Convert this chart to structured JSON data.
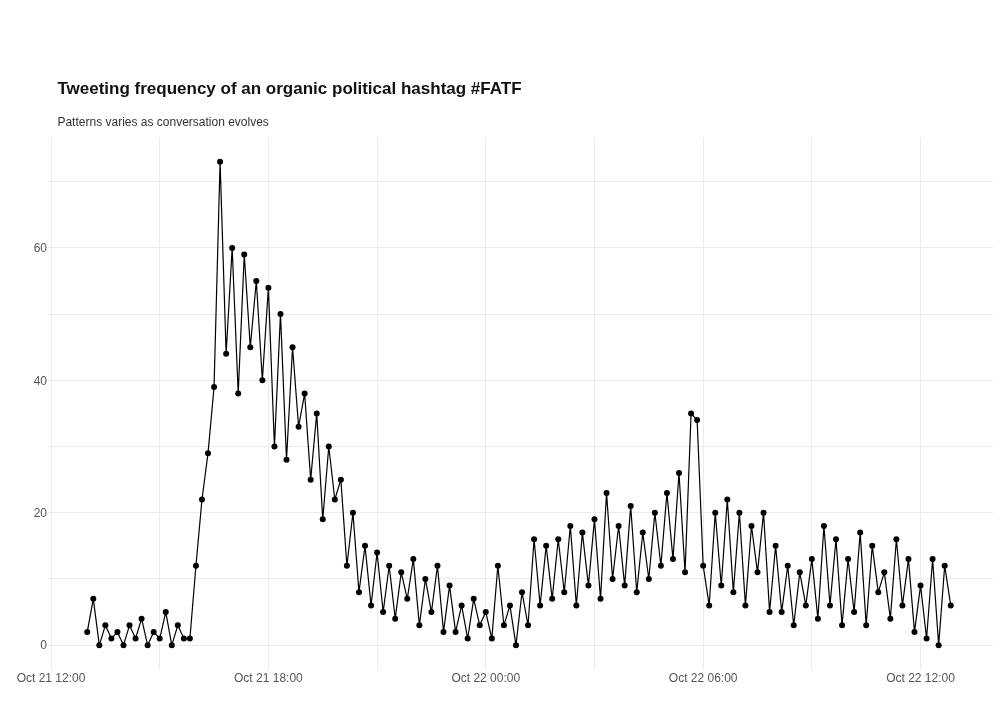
{
  "chart_data": {
    "type": "line",
    "title": "Tweeting frequency of an organic political hashtag #FATF",
    "subtitle": "Patterns varies as conversation evolves",
    "x": [
      "--10-21T13:00",
      "--10-21T13:10",
      "--10-21T13:20",
      "--10-21T13:30",
      "--10-21T13:40",
      "--10-21T13:50",
      "--10-21T14:00",
      "--10-21T14:10",
      "--10-21T14:20",
      "--10-21T14:30",
      "--10-21T14:40",
      "--10-21T14:50",
      "--10-21T15:00",
      "--10-21T15:10",
      "--10-21T15:20",
      "--10-21T15:30",
      "--10-21T15:40",
      "--10-21T15:50",
      "--10-21T16:00",
      "--10-21T16:10",
      "--10-21T16:20",
      "--10-21T16:30",
      "--10-21T16:40",
      "--10-21T16:50",
      "--10-21T17:00",
      "--10-21T17:10",
      "--10-21T17:20",
      "--10-21T17:30",
      "--10-21T17:40",
      "--10-21T17:50",
      "--10-21T18:00",
      "--10-21T18:10",
      "--10-21T18:20",
      "--10-21T18:30",
      "--10-21T18:40",
      "--10-21T18:50",
      "--10-21T19:00",
      "--10-21T19:10",
      "--10-21T19:20",
      "--10-21T19:30",
      "--10-21T19:40",
      "--10-21T19:50",
      "--10-21T20:00",
      "--10-21T20:10",
      "--10-21T20:20",
      "--10-21T20:30",
      "--10-21T20:40",
      "--10-21T20:50",
      "--10-21T21:00",
      "--10-21T21:10",
      "--10-21T21:20",
      "--10-21T21:30",
      "--10-21T21:40",
      "--10-21T21:50",
      "--10-21T22:00",
      "--10-21T22:10",
      "--10-21T22:20",
      "--10-21T22:30",
      "--10-21T22:40",
      "--10-21T22:50",
      "--10-21T23:00",
      "--10-21T23:10",
      "--10-21T23:20",
      "--10-21T23:30",
      "--10-21T23:40",
      "--10-21T23:50",
      "--10-22T00:00",
      "--10-22T00:10",
      "--10-22T00:20",
      "--10-22T00:30",
      "--10-22T00:40",
      "--10-22T00:50",
      "--10-22T01:00",
      "--10-22T01:10",
      "--10-22T01:20",
      "--10-22T01:30",
      "--10-22T01:40",
      "--10-22T01:50",
      "--10-22T02:00",
      "--10-22T02:10",
      "--10-22T02:20",
      "--10-22T02:30",
      "--10-22T02:40",
      "--10-22T02:50",
      "--10-22T03:00",
      "--10-22T03:10",
      "--10-22T03:20",
      "--10-22T03:30",
      "--10-22T03:40",
      "--10-22T03:50",
      "--10-22T04:00",
      "--10-22T04:10",
      "--10-22T04:20",
      "--10-22T04:30",
      "--10-22T04:40",
      "--10-22T04:50",
      "--10-22T05:00",
      "--10-22T05:10",
      "--10-22T05:20",
      "--10-22T05:30",
      "--10-22T05:40",
      "--10-22T05:50",
      "--10-22T06:00",
      "--10-22T06:10",
      "--10-22T06:20",
      "--10-22T06:30",
      "--10-22T06:40",
      "--10-22T06:50",
      "--10-22T07:00",
      "--10-22T07:10",
      "--10-22T07:20",
      "--10-22T07:30",
      "--10-22T07:40",
      "--10-22T07:50",
      "--10-22T08:00",
      "--10-22T08:10",
      "--10-22T08:20",
      "--10-22T08:30",
      "--10-22T08:40",
      "--10-22T08:50",
      "--10-22T09:00",
      "--10-22T09:10",
      "--10-22T09:20",
      "--10-22T09:30",
      "--10-22T09:40",
      "--10-22T09:50",
      "--10-22T10:00",
      "--10-22T10:10",
      "--10-22T10:20",
      "--10-22T10:30",
      "--10-22T10:40",
      "--10-22T10:50",
      "--10-22T11:00",
      "--10-22T11:10",
      "--10-22T11:20",
      "--10-22T11:30",
      "--10-22T11:40",
      "--10-22T11:50",
      "--10-22T12:00",
      "--10-22T12:10",
      "--10-22T12:20",
      "--10-22T12:30",
      "--10-22T12:40",
      "--10-22T12:50"
    ],
    "series": [
      {
        "color": "#000000",
        "values": [
          2,
          7,
          0,
          3,
          1,
          2,
          0,
          3,
          1,
          4,
          0,
          2,
          1,
          5,
          0,
          3,
          1,
          1,
          12,
          22,
          29,
          39,
          73,
          44,
          60,
          38,
          59,
          45,
          55,
          40,
          54,
          30,
          50,
          28,
          45,
          33,
          38,
          25,
          35,
          19,
          30,
          22,
          25,
          12,
          20,
          8,
          15,
          6,
          14,
          5,
          12,
          4,
          11,
          7,
          13,
          3,
          10,
          5,
          12,
          2,
          9,
          2,
          6,
          1,
          7,
          3,
          5,
          1,
          12,
          3,
          6,
          0,
          8,
          3,
          16,
          6,
          15,
          7,
          16,
          8,
          18,
          6,
          17,
          9,
          19,
          7,
          23,
          10,
          18,
          9,
          21,
          8,
          17,
          10,
          20,
          12,
          23,
          13,
          26,
          11,
          35,
          34,
          12,
          6,
          20,
          9,
          22,
          8,
          20,
          6,
          18,
          11,
          20,
          5,
          15,
          5,
          12,
          3,
          11,
          6,
          13,
          4,
          18,
          6,
          16,
          3,
          13,
          5,
          17,
          3,
          15,
          8,
          11,
          4,
          16,
          6,
          13,
          2,
          9,
          1,
          13,
          0,
          12,
          6
        ]
      }
    ],
    "xlim": [
      "--10-21T11:55",
      "--10-22T14:00"
    ],
    "xticks": [
      {
        "value": "--10-21T12:00",
        "label": "Oct 21 12:00"
      },
      {
        "value": "--10-21T15:00",
        "label": null
      },
      {
        "value": "--10-21T18:00",
        "label": "Oct 21 18:00"
      },
      {
        "value": "--10-21T21:00",
        "label": null
      },
      {
        "value": "--10-22T00:00",
        "label": "Oct 22 00:00"
      },
      {
        "value": "--10-22T03:00",
        "label": null
      },
      {
        "value": "--10-22T06:00",
        "label": "Oct 22 06:00"
      },
      {
        "value": "--10-22T09:00",
        "label": null
      },
      {
        "value": "--10-22T12:00",
        "label": "Oct 22 12:00"
      }
    ],
    "ylim": [
      -3.6,
      76.6
    ],
    "yticks": [
      0,
      {
        "value": 10,
        "label": null
      },
      20,
      {
        "value": 30,
        "label": null
      },
      40,
      {
        "value": 50,
        "label": null
      },
      60,
      {
        "value": 70,
        "label": null
      }
    ],
    "grid": true,
    "marker": "circle",
    "line_style": "solid"
  }
}
